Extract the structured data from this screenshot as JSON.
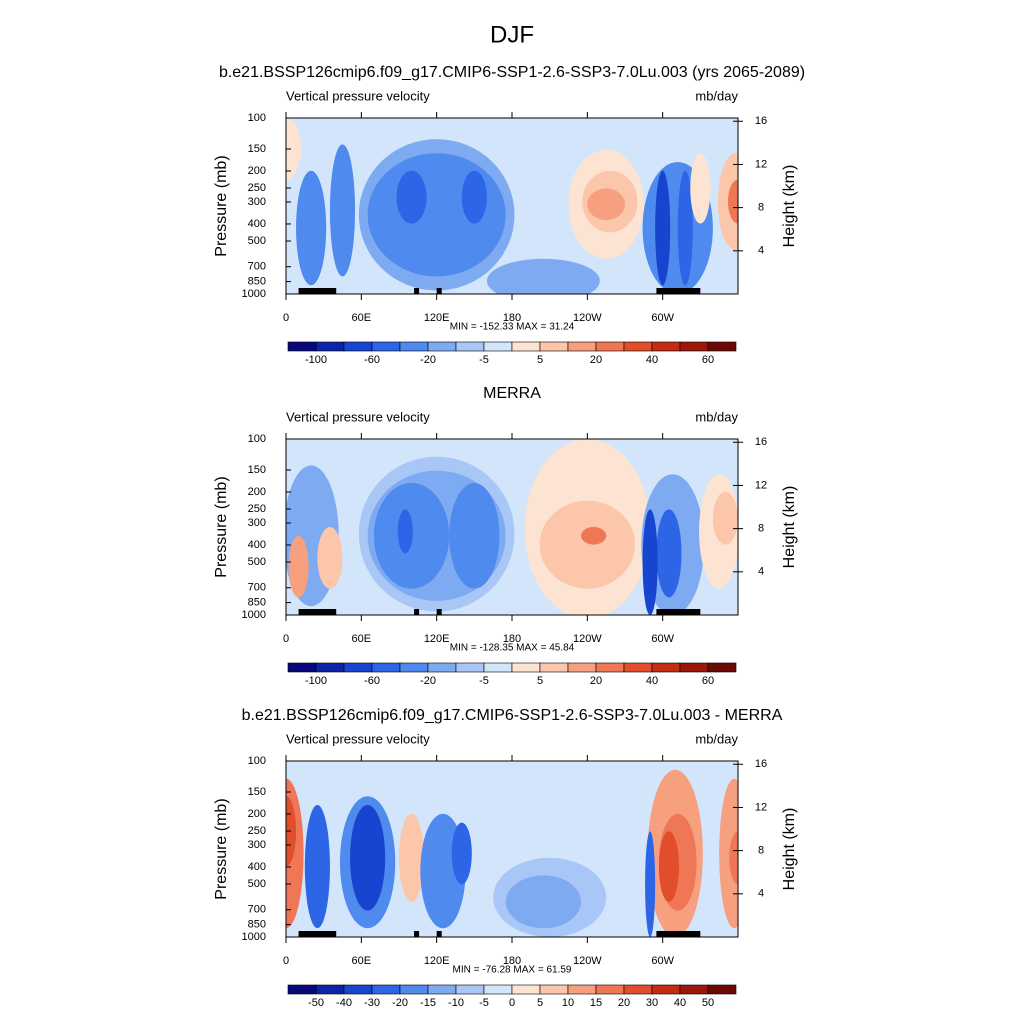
{
  "title": "DJF",
  "chart_data": [
    {
      "type": "contour",
      "title": "b.e21.BSSP126cmip6.f09_g17.CMIP6-SSP1-2.6-SSP3-7.0Lu.003 (yrs 2065-2089)",
      "left_label": "Vertical pressure velocity",
      "right_label": "mb/day",
      "ylabel": "Pressure (mb)",
      "y2label": "Height (km)",
      "yscale": "log",
      "ylim": [
        1000,
        100
      ],
      "yticks": [
        100,
        150,
        200,
        250,
        300,
        400,
        500,
        700,
        850,
        1000
      ],
      "y2lim": [
        0,
        16.3
      ],
      "y2ticks": [
        4,
        8,
        12,
        16
      ],
      "xlim": [
        0,
        360
      ],
      "xticks": [
        0,
        {
          "value": 60,
          "label": "60E"
        },
        {
          "value": 120,
          "label": "120E"
        },
        {
          "value": 180,
          "label": "180"
        },
        {
          "value": 240,
          "label": "120W"
        },
        {
          "value": 300,
          "label": "60W"
        }
      ],
      "annotation": "MIN = -152.33  MAX =  31.24",
      "colorbar": {
        "colors": [
          "#08087a",
          "#0c24a8",
          "#1845cf",
          "#2c66e6",
          "#4f8aef",
          "#7eaaf2",
          "#a9c7f6",
          "#d3e5fb",
          "#fde4d2",
          "#fbc6aa",
          "#f6a080",
          "#ef7756",
          "#e24d2c",
          "#c52c14",
          "#9b1709",
          "#6b0a04"
        ],
        "ticks": [
          -100,
          -60,
          -20,
          -5,
          5,
          20,
          40,
          60
        ]
      }
    },
    {
      "type": "contour",
      "title": "MERRA",
      "left_label": "Vertical pressure velocity",
      "right_label": "mb/day",
      "ylabel": "Pressure (mb)",
      "y2label": "Height (km)",
      "yscale": "log",
      "ylim": [
        1000,
        100
      ],
      "yticks": [
        100,
        150,
        200,
        250,
        300,
        400,
        500,
        700,
        850,
        1000
      ],
      "y2lim": [
        0,
        16.3
      ],
      "y2ticks": [
        4,
        8,
        12,
        16
      ],
      "xlim": [
        0,
        360
      ],
      "xticks": [
        0,
        {
          "value": 60,
          "label": "60E"
        },
        {
          "value": 120,
          "label": "120E"
        },
        {
          "value": 180,
          "label": "180"
        },
        {
          "value": 240,
          "label": "120W"
        },
        {
          "value": 300,
          "label": "60W"
        }
      ],
      "annotation": "MIN = -128.35  MAX =  45.84",
      "colorbar": {
        "colors": [
          "#08087a",
          "#0c24a8",
          "#1845cf",
          "#2c66e6",
          "#4f8aef",
          "#7eaaf2",
          "#a9c7f6",
          "#d3e5fb",
          "#fde4d2",
          "#fbc6aa",
          "#f6a080",
          "#ef7756",
          "#e24d2c",
          "#c52c14",
          "#9b1709",
          "#6b0a04"
        ],
        "ticks": [
          -100,
          -60,
          -20,
          -5,
          5,
          20,
          40,
          60
        ]
      }
    },
    {
      "type": "contour",
      "title": "b.e21.BSSP126cmip6.f09_g17.CMIP6-SSP1-2.6-SSP3-7.0Lu.003 - MERRA",
      "left_label": "Vertical pressure velocity",
      "right_label": "mb/day",
      "ylabel": "Pressure (mb)",
      "y2label": "Height (km)",
      "yscale": "log",
      "ylim": [
        1000,
        100
      ],
      "yticks": [
        100,
        150,
        200,
        250,
        300,
        400,
        500,
        700,
        850,
        1000
      ],
      "y2lim": [
        0,
        16.3
      ],
      "y2ticks": [
        4,
        8,
        12,
        16
      ],
      "xlim": [
        0,
        360
      ],
      "xticks": [
        0,
        {
          "value": 60,
          "label": "60E"
        },
        {
          "value": 120,
          "label": "120E"
        },
        {
          "value": 180,
          "label": "180"
        },
        {
          "value": 240,
          "label": "120W"
        },
        {
          "value": 300,
          "label": "60W"
        }
      ],
      "annotation": "MIN = -76.28  MAX =  61.59",
      "colorbar": {
        "colors": [
          "#08087a",
          "#0c24a8",
          "#1845cf",
          "#2c66e6",
          "#4f8aef",
          "#7eaaf2",
          "#a9c7f6",
          "#d3e5fb",
          "#fde4d2",
          "#fbc6aa",
          "#f6a080",
          "#ef7756",
          "#e24d2c",
          "#c52c14",
          "#9b1709",
          "#6b0a04"
        ],
        "ticks": [
          -50,
          -40,
          -30,
          -20,
          -15,
          -10,
          -5,
          0,
          5,
          10,
          15,
          20,
          30,
          40,
          50
        ]
      }
    }
  ]
}
